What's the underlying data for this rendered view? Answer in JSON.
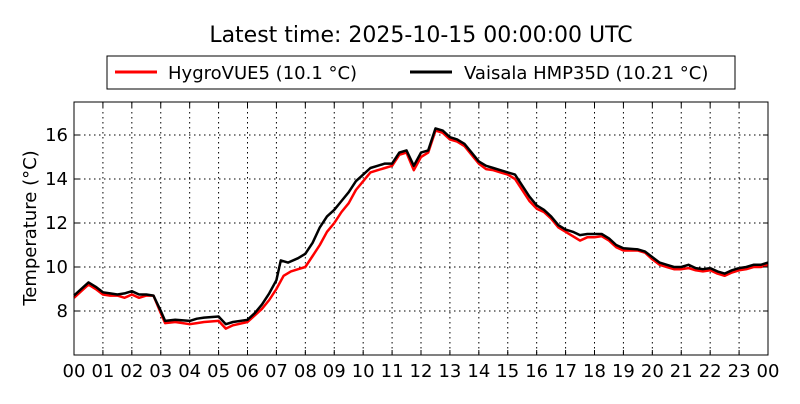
{
  "chart_data": {
    "type": "line",
    "title": "Latest time: 2025-10-15 00:00:00 UTC",
    "xlabel": "",
    "ylabel": "Temperature (°C)",
    "xlim": [
      0,
      24
    ],
    "ylim": [
      6,
      17.5
    ],
    "x_tick_values": [
      0,
      1,
      2,
      3,
      4,
      5,
      6,
      7,
      8,
      9,
      10,
      11,
      12,
      13,
      14,
      15,
      16,
      17,
      18,
      19,
      20,
      21,
      22,
      23,
      24
    ],
    "x_tick_labels": [
      "00",
      "01",
      "02",
      "03",
      "04",
      "05",
      "06",
      "07",
      "08",
      "09",
      "10",
      "11",
      "12",
      "13",
      "14",
      "15",
      "16",
      "17",
      "18",
      "19",
      "20",
      "21",
      "22",
      "23",
      "00"
    ],
    "y_ticks": [
      8,
      10,
      12,
      14,
      16
    ],
    "grid": true,
    "legend_placement": "top-center, above plot",
    "series": [
      {
        "name": "HygroVUE5 (10.1 °C)",
        "color": "#ff0000",
        "points": [
          [
            0,
            8.6
          ],
          [
            0.25,
            8.9
          ],
          [
            0.5,
            9.2
          ],
          [
            0.75,
            9.0
          ],
          [
            1,
            8.75
          ],
          [
            1.25,
            8.7
          ],
          [
            1.5,
            8.7
          ],
          [
            1.75,
            8.6
          ],
          [
            2,
            8.75
          ],
          [
            2.25,
            8.6
          ],
          [
            2.5,
            8.7
          ],
          [
            2.75,
            8.7
          ],
          [
            3,
            7.9
          ],
          [
            3.15,
            7.45
          ],
          [
            3.5,
            7.5
          ],
          [
            4,
            7.4
          ],
          [
            4.25,
            7.45
          ],
          [
            4.5,
            7.5
          ],
          [
            5,
            7.55
          ],
          [
            5.25,
            7.2
          ],
          [
            5.5,
            7.35
          ],
          [
            6,
            7.5
          ],
          [
            6.25,
            7.8
          ],
          [
            6.5,
            8.1
          ],
          [
            6.75,
            8.5
          ],
          [
            7,
            9.0
          ],
          [
            7.25,
            9.6
          ],
          [
            7.5,
            9.8
          ],
          [
            7.75,
            9.9
          ],
          [
            8,
            10.0
          ],
          [
            8.25,
            10.5
          ],
          [
            8.5,
            11.0
          ],
          [
            8.75,
            11.6
          ],
          [
            9,
            12.0
          ],
          [
            9.25,
            12.5
          ],
          [
            9.5,
            12.9
          ],
          [
            9.75,
            13.5
          ],
          [
            10,
            13.9
          ],
          [
            10.25,
            14.3
          ],
          [
            10.5,
            14.4
          ],
          [
            10.75,
            14.5
          ],
          [
            11,
            14.6
          ],
          [
            11.25,
            15.1
          ],
          [
            11.5,
            15.2
          ],
          [
            11.75,
            14.4
          ],
          [
            12,
            15.0
          ],
          [
            12.25,
            15.2
          ],
          [
            12.5,
            16.2
          ],
          [
            12.75,
            16.1
          ],
          [
            13,
            15.8
          ],
          [
            13.25,
            15.7
          ],
          [
            13.5,
            15.5
          ],
          [
            13.75,
            15.1
          ],
          [
            14,
            14.7
          ],
          [
            14.25,
            14.45
          ],
          [
            14.5,
            14.4
          ],
          [
            14.75,
            14.3
          ],
          [
            15,
            14.2
          ],
          [
            15.25,
            14.0
          ],
          [
            15.5,
            13.5
          ],
          [
            15.75,
            13.0
          ],
          [
            16,
            12.65
          ],
          [
            16.25,
            12.5
          ],
          [
            16.5,
            12.2
          ],
          [
            16.75,
            11.8
          ],
          [
            17,
            11.6
          ],
          [
            17.25,
            11.4
          ],
          [
            17.5,
            11.2
          ],
          [
            17.75,
            11.35
          ],
          [
            18,
            11.35
          ],
          [
            18.25,
            11.4
          ],
          [
            18.5,
            11.2
          ],
          [
            18.75,
            10.9
          ],
          [
            19,
            10.75
          ],
          [
            19.5,
            10.75
          ],
          [
            19.75,
            10.65
          ],
          [
            20,
            10.35
          ],
          [
            20.25,
            10.1
          ],
          [
            20.5,
            10.0
          ],
          [
            20.75,
            9.9
          ],
          [
            21,
            9.9
          ],
          [
            21.25,
            9.95
          ],
          [
            21.5,
            9.85
          ],
          [
            21.75,
            9.8
          ],
          [
            22,
            9.85
          ],
          [
            22.25,
            9.7
          ],
          [
            22.5,
            9.6
          ],
          [
            22.75,
            9.75
          ],
          [
            23,
            9.85
          ],
          [
            23.25,
            9.9
          ],
          [
            23.5,
            10.0
          ],
          [
            23.75,
            10.0
          ],
          [
            24,
            10.1
          ]
        ]
      },
      {
        "name": "Vaisala HMP35D (10.21 °C)",
        "color": "#000000",
        "points": [
          [
            0,
            8.7
          ],
          [
            0.25,
            9.0
          ],
          [
            0.5,
            9.3
          ],
          [
            0.75,
            9.1
          ],
          [
            1,
            8.85
          ],
          [
            1.25,
            8.8
          ],
          [
            1.5,
            8.75
          ],
          [
            1.75,
            8.8
          ],
          [
            2,
            8.9
          ],
          [
            2.25,
            8.75
          ],
          [
            2.5,
            8.75
          ],
          [
            2.75,
            8.7
          ],
          [
            3,
            8.0
          ],
          [
            3.15,
            7.55
          ],
          [
            3.5,
            7.6
          ],
          [
            4,
            7.55
          ],
          [
            4.25,
            7.65
          ],
          [
            4.5,
            7.7
          ],
          [
            5,
            7.75
          ],
          [
            5.25,
            7.4
          ],
          [
            5.5,
            7.5
          ],
          [
            6,
            7.6
          ],
          [
            6.25,
            7.9
          ],
          [
            6.5,
            8.3
          ],
          [
            6.75,
            8.8
          ],
          [
            7,
            9.4
          ],
          [
            7.15,
            10.3
          ],
          [
            7.4,
            10.2
          ],
          [
            7.75,
            10.4
          ],
          [
            8,
            10.6
          ],
          [
            8.25,
            11.1
          ],
          [
            8.5,
            11.8
          ],
          [
            8.75,
            12.3
          ],
          [
            9,
            12.6
          ],
          [
            9.25,
            13.0
          ],
          [
            9.5,
            13.4
          ],
          [
            9.75,
            13.9
          ],
          [
            10,
            14.2
          ],
          [
            10.25,
            14.5
          ],
          [
            10.5,
            14.6
          ],
          [
            10.75,
            14.7
          ],
          [
            11,
            14.7
          ],
          [
            11.25,
            15.2
          ],
          [
            11.5,
            15.3
          ],
          [
            11.75,
            14.6
          ],
          [
            12,
            15.2
          ],
          [
            12.25,
            15.3
          ],
          [
            12.5,
            16.3
          ],
          [
            12.75,
            16.2
          ],
          [
            13,
            15.9
          ],
          [
            13.25,
            15.8
          ],
          [
            13.5,
            15.6
          ],
          [
            13.75,
            15.2
          ],
          [
            14,
            14.8
          ],
          [
            14.25,
            14.6
          ],
          [
            14.5,
            14.5
          ],
          [
            14.75,
            14.4
          ],
          [
            15,
            14.3
          ],
          [
            15.25,
            14.2
          ],
          [
            15.5,
            13.7
          ],
          [
            15.75,
            13.2
          ],
          [
            16,
            12.8
          ],
          [
            16.25,
            12.6
          ],
          [
            16.5,
            12.3
          ],
          [
            16.75,
            11.9
          ],
          [
            17,
            11.7
          ],
          [
            17.25,
            11.6
          ],
          [
            17.5,
            11.45
          ],
          [
            17.75,
            11.5
          ],
          [
            18,
            11.5
          ],
          [
            18.25,
            11.5
          ],
          [
            18.5,
            11.3
          ],
          [
            18.75,
            11.0
          ],
          [
            19,
            10.85
          ],
          [
            19.5,
            10.8
          ],
          [
            19.75,
            10.7
          ],
          [
            20,
            10.45
          ],
          [
            20.25,
            10.2
          ],
          [
            20.5,
            10.1
          ],
          [
            20.75,
            10.0
          ],
          [
            21,
            10.0
          ],
          [
            21.25,
            10.1
          ],
          [
            21.5,
            9.95
          ],
          [
            21.75,
            9.9
          ],
          [
            22,
            9.95
          ],
          [
            22.25,
            9.8
          ],
          [
            22.5,
            9.7
          ],
          [
            22.75,
            9.85
          ],
          [
            23,
            9.95
          ],
          [
            23.25,
            10.0
          ],
          [
            23.5,
            10.1
          ],
          [
            23.75,
            10.1
          ],
          [
            24,
            10.2
          ]
        ]
      }
    ]
  }
}
